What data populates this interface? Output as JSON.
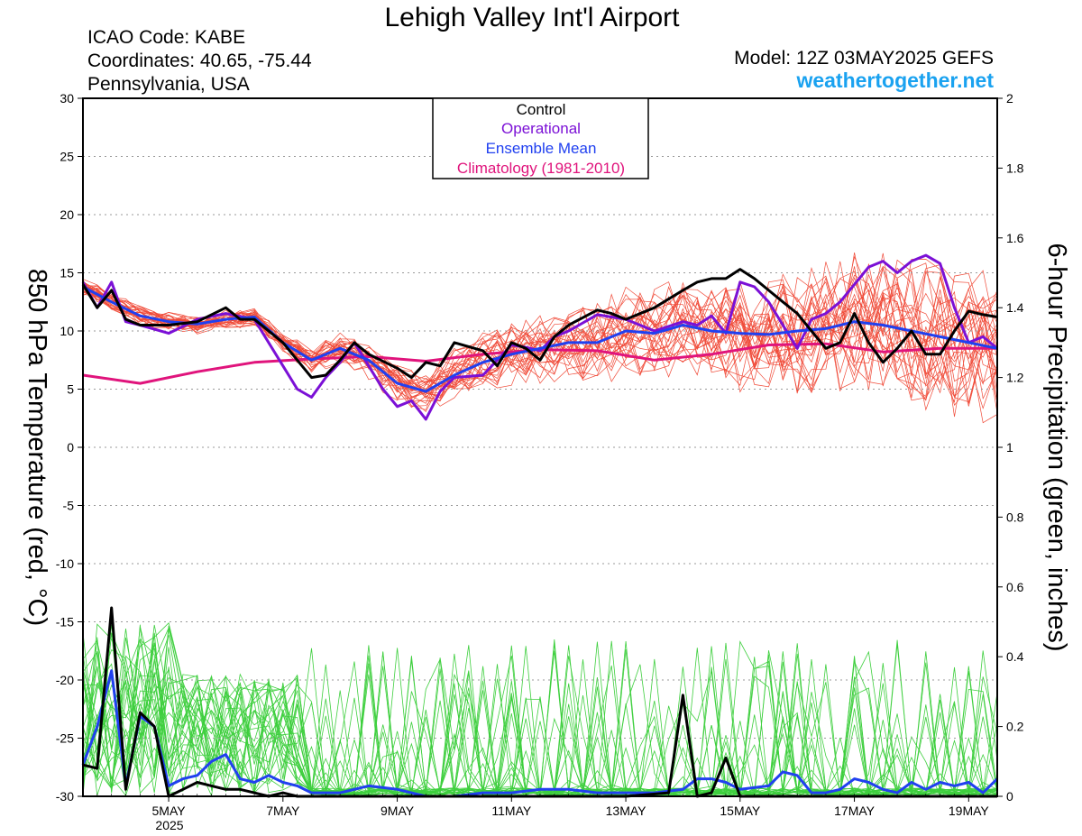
{
  "header": {
    "title": "Lehigh Valley Int'l Airport",
    "icao": "ICAO Code: KABE",
    "coords": "Coordinates: 40.65, -75.44",
    "region": "Pennsylvania, USA",
    "model": "Model: 12Z 03MAY2025 GEFS",
    "site": "weathertogether.net"
  },
  "colors": {
    "control": "#000000",
    "operational": "#7b10d6",
    "ensemble_mean": "#2040f0",
    "climatology": "#e0147c",
    "members_temp": "#f04a38",
    "members_precip": "#3ecf3e",
    "site": "#1aa2f0"
  },
  "chart_data": {
    "type": "line",
    "ylabel": "850 hPa Temperature (red, °C)",
    "y2label": "6-hour Precipitation (green, inches)",
    "x_ticks": [
      {
        "label": "5MAY",
        "day": 5
      },
      {
        "label": "7MAY",
        "day": 7
      },
      {
        "label": "9MAY",
        "day": 9
      },
      {
        "label": "11MAY",
        "day": 11
      },
      {
        "label": "13MAY",
        "day": 13
      },
      {
        "label": "15MAY",
        "day": 15
      },
      {
        "label": "17MAY",
        "day": 17
      },
      {
        "label": "19MAY",
        "day": 19
      }
    ],
    "x_year_label": "2025",
    "xlim_days": [
      3.5,
      19.5
    ],
    "ylim": [
      -30,
      30
    ],
    "y_ticks": [
      -30,
      -25,
      -20,
      -15,
      -10,
      -5,
      0,
      5,
      10,
      15,
      20,
      25,
      30
    ],
    "y2lim": [
      0,
      2
    ],
    "y2_ticks": [
      0,
      0.2,
      0.4,
      0.6,
      0.8,
      1,
      1.2,
      1.4,
      1.6,
      1.8,
      2
    ],
    "grid": true,
    "legend": {
      "position": "top-center",
      "entries": [
        "Control",
        "Operational",
        "Ensemble Mean",
        "Climatology (1981-2010)"
      ]
    },
    "series": [
      {
        "name": "Control",
        "axis": "temp",
        "x": [
          3.5,
          3.75,
          4.0,
          4.25,
          4.5,
          5.0,
          5.5,
          6.0,
          6.25,
          6.5,
          7.0,
          7.25,
          7.5,
          7.75,
          8.0,
          8.25,
          8.5,
          9.0,
          9.25,
          9.5,
          9.75,
          10.0,
          10.5,
          10.75,
          11.0,
          11.25,
          11.5,
          11.75,
          12.0,
          12.5,
          12.75,
          13.0,
          13.5,
          14.0,
          14.25,
          14.5,
          14.75,
          15.0,
          15.25,
          15.5,
          15.75,
          16.0,
          16.25,
          16.5,
          16.75,
          17.0,
          17.25,
          17.5,
          17.75,
          18.0,
          18.25,
          18.5,
          18.75,
          19.0,
          19.25,
          19.5
        ],
        "y": [
          14,
          12,
          13.5,
          11,
          10.5,
          10.5,
          10.8,
          12,
          11,
          11,
          9,
          7.5,
          6,
          6.2,
          7.5,
          9,
          8,
          6.8,
          6,
          7.3,
          7,
          9,
          8.3,
          7,
          9,
          8.5,
          7.5,
          9.5,
          10.5,
          11.8,
          11.5,
          11,
          12,
          13.5,
          14.2,
          14.5,
          14.5,
          15.3,
          14.5,
          13.5,
          12.5,
          11.5,
          10,
          8.5,
          9,
          11.5,
          9,
          7.3,
          8.5,
          10,
          8,
          8,
          10,
          11.7,
          11.4,
          11.2
        ]
      },
      {
        "name": "Operational",
        "axis": "temp",
        "x": [
          3.5,
          3.75,
          4.0,
          4.25,
          4.5,
          5.0,
          5.5,
          6.0,
          6.5,
          7.0,
          7.25,
          7.5,
          7.75,
          8.0,
          8.25,
          8.5,
          8.75,
          9.0,
          9.25,
          9.5,
          9.75,
          10.0,
          10.5,
          10.75,
          11.0,
          11.25,
          11.5,
          11.75,
          12.0,
          12.5,
          12.75,
          13.0,
          13.5,
          14.0,
          14.25,
          14.5,
          14.75,
          15.0,
          15.25,
          15.5,
          15.75,
          16.0,
          16.25,
          16.5,
          16.75,
          17.0,
          17.25,
          17.5,
          17.75,
          18.0,
          18.25,
          18.5,
          18.75,
          19.0,
          19.25,
          19.5
        ],
        "y": [
          14.2,
          12,
          14.2,
          10.8,
          10.5,
          9.8,
          11,
          11.5,
          11,
          7,
          5,
          4.3,
          6,
          7.3,
          9,
          7,
          5,
          3.5,
          4,
          2.4,
          4.8,
          6,
          6.2,
          7.5,
          8.8,
          8.6,
          8.3,
          9.5,
          10,
          11.4,
          11.2,
          11,
          10,
          10.8,
          10.5,
          11.3,
          9.8,
          14.2,
          13.8,
          12.5,
          10.5,
          8.5,
          11,
          11.5,
          12.5,
          14,
          15.5,
          16,
          15,
          16,
          16.5,
          15.8,
          12,
          9,
          9.5,
          8.5
        ]
      },
      {
        "name": "Ensemble Mean",
        "axis": "temp",
        "x": [
          3.5,
          4.0,
          4.5,
          5.0,
          5.5,
          6.0,
          6.5,
          7.0,
          7.5,
          8.0,
          8.5,
          9.0,
          9.5,
          10.0,
          10.5,
          11.0,
          11.5,
          12.0,
          12.5,
          13.0,
          13.5,
          14.0,
          14.5,
          15.0,
          15.5,
          16.0,
          16.5,
          17.0,
          17.5,
          18.0,
          18.5,
          19.0,
          19.5
        ],
        "y": [
          13.8,
          12.5,
          11.3,
          10.8,
          10.6,
          11,
          11.2,
          9,
          7.5,
          8.5,
          7.5,
          5.5,
          4.8,
          6.2,
          7.3,
          8,
          8.5,
          9,
          9,
          10,
          9.8,
          10.5,
          10,
          9.8,
          9.7,
          10,
          10.2,
          10.8,
          10.5,
          10,
          9.5,
          9,
          8.5
        ]
      },
      {
        "name": "Climatology (1981-2010)",
        "axis": "temp",
        "x": [
          3.5,
          4.5,
          5.5,
          6.5,
          7.5,
          8.5,
          9.5,
          10.5,
          11.5,
          12.5,
          13.5,
          14.5,
          15.5,
          16.5,
          17.5,
          18.5,
          19.5
        ],
        "y": [
          6.2,
          5.5,
          6.5,
          7.3,
          7.6,
          7.8,
          7.4,
          8,
          8.4,
          8.3,
          7.5,
          8,
          8.8,
          8.9,
          8.2,
          8.5,
          8.5
        ]
      },
      {
        "name": "Control",
        "axis": "precip",
        "x": [
          3.5,
          3.75,
          4.0,
          4.25,
          4.5,
          4.75,
          5.0,
          5.25,
          5.5,
          5.75,
          6.0,
          6.25,
          6.5,
          6.75,
          7.0,
          7.25,
          7.5,
          8.0,
          8.5,
          9.0,
          9.5,
          10.0,
          11.0,
          12.0,
          13.0,
          13.75,
          14.0,
          14.25,
          14.5,
          14.75,
          15.0,
          15.25,
          15.5,
          16.0,
          17.0,
          18.0,
          19.0,
          19.5
        ],
        "y": [
          0.09,
          0.08,
          0.54,
          0.02,
          0.24,
          0.2,
          0.0,
          0.02,
          0.04,
          0.03,
          0.02,
          0.02,
          0.01,
          0.0,
          0.01,
          0.0,
          0.0,
          0.0,
          0.0,
          0.0,
          0.0,
          0.0,
          0.0,
          0.0,
          0.0,
          0.01,
          0.29,
          0.0,
          0.01,
          0.11,
          0.0,
          0.0,
          0.0,
          0.0,
          0.0,
          0.0,
          0.0,
          0.0
        ]
      },
      {
        "name": "Ensemble Mean",
        "axis": "precip",
        "x": [
          3.5,
          3.75,
          4.0,
          4.25,
          4.5,
          4.75,
          5.0,
          5.25,
          5.5,
          5.75,
          6.0,
          6.25,
          6.5,
          6.75,
          7.0,
          7.25,
          7.5,
          8.0,
          8.5,
          9.0,
          9.5,
          10.0,
          10.5,
          11.0,
          11.5,
          12.0,
          12.5,
          13.0,
          13.5,
          14.0,
          14.25,
          14.5,
          14.75,
          15.0,
          15.5,
          15.75,
          16.0,
          16.25,
          16.5,
          16.75,
          17.0,
          17.25,
          17.5,
          17.75,
          18.0,
          18.25,
          18.5,
          18.75,
          19.0,
          19.25,
          19.5
        ],
        "y": [
          0.09,
          0.2,
          0.36,
          0.03,
          0.23,
          0.2,
          0.03,
          0.05,
          0.06,
          0.1,
          0.12,
          0.05,
          0.04,
          0.06,
          0.04,
          0.03,
          0.01,
          0.01,
          0.03,
          0.02,
          0.0,
          0.0,
          0.01,
          0.01,
          0.02,
          0.02,
          0.01,
          0.01,
          0.01,
          0.02,
          0.05,
          0.05,
          0.04,
          0.02,
          0.03,
          0.07,
          0.06,
          0.01,
          0.01,
          0.02,
          0.05,
          0.04,
          0.02,
          0.01,
          0.04,
          0.02,
          0.04,
          0.03,
          0.04,
          0.01,
          0.05
        ]
      }
    ]
  }
}
